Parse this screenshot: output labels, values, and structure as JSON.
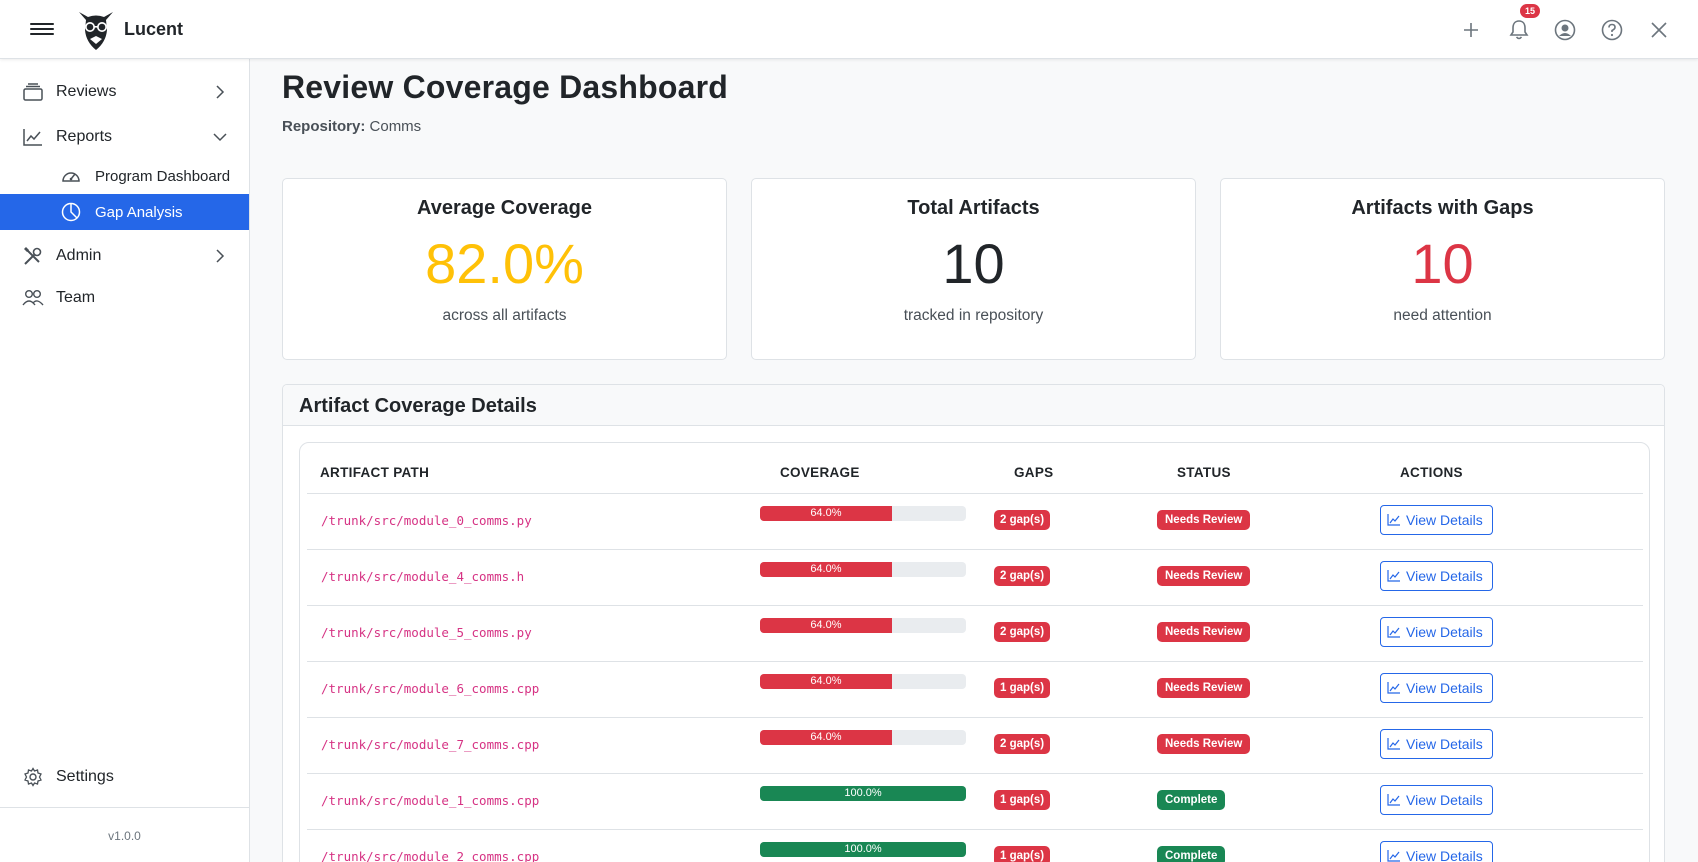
{
  "app": {
    "name": "Lucent",
    "version": "v1.0.0"
  },
  "topbar": {
    "notification_count": "15"
  },
  "sidebar": {
    "items": [
      {
        "label": "Reviews"
      },
      {
        "label": "Reports"
      },
      {
        "label": "Program Dashboard"
      },
      {
        "label": "Gap Analysis"
      },
      {
        "label": "Admin"
      },
      {
        "label": "Team"
      }
    ],
    "settings_label": "Settings"
  },
  "page": {
    "title": "Review Coverage Dashboard",
    "repo_label": "Repository:",
    "repo_name": "Comms"
  },
  "stats": [
    {
      "title": "Average Coverage",
      "value": "82.0%",
      "sub": "across all artifacts",
      "color": "#ffc107"
    },
    {
      "title": "Total Artifacts",
      "value": "10",
      "sub": "tracked in repository",
      "color": "#212529"
    },
    {
      "title": "Artifacts with Gaps",
      "value": "10",
      "sub": "need attention",
      "color": "#dc3545"
    }
  ],
  "details": {
    "title": "Artifact Coverage Details",
    "columns": [
      "ARTIFACT PATH",
      "COVERAGE",
      "GAPS",
      "STATUS",
      "ACTIONS"
    ],
    "rows": [
      {
        "path": "/trunk/src/module_0_comms.py",
        "coverage": 64.0,
        "coverage_label": "64.0%",
        "gaps": "2 gap(s)",
        "status": "Needs Review",
        "action": "View Details"
      },
      {
        "path": "/trunk/src/module_4_comms.h",
        "coverage": 64.0,
        "coverage_label": "64.0%",
        "gaps": "2 gap(s)",
        "status": "Needs Review",
        "action": "View Details"
      },
      {
        "path": "/trunk/src/module_5_comms.py",
        "coverage": 64.0,
        "coverage_label": "64.0%",
        "gaps": "2 gap(s)",
        "status": "Needs Review",
        "action": "View Details"
      },
      {
        "path": "/trunk/src/module_6_comms.cpp",
        "coverage": 64.0,
        "coverage_label": "64.0%",
        "gaps": "1 gap(s)",
        "status": "Needs Review",
        "action": "View Details"
      },
      {
        "path": "/trunk/src/module_7_comms.cpp",
        "coverage": 64.0,
        "coverage_label": "64.0%",
        "gaps": "2 gap(s)",
        "status": "Needs Review",
        "action": "View Details"
      },
      {
        "path": "/trunk/src/module_1_comms.cpp",
        "coverage": 100.0,
        "coverage_label": "100.0%",
        "gaps": "1 gap(s)",
        "status": "Complete",
        "action": "View Details"
      },
      {
        "path": "/trunk/src/module_2_comms.cpp",
        "coverage": 100.0,
        "coverage_label": "100.0%",
        "gaps": "1 gap(s)",
        "status": "Complete",
        "action": "View Details"
      }
    ]
  },
  "colors": {
    "accent": "#2567e8",
    "danger": "#dc3545",
    "success": "#198754",
    "warning": "#ffc107",
    "path": "#d63384"
  }
}
